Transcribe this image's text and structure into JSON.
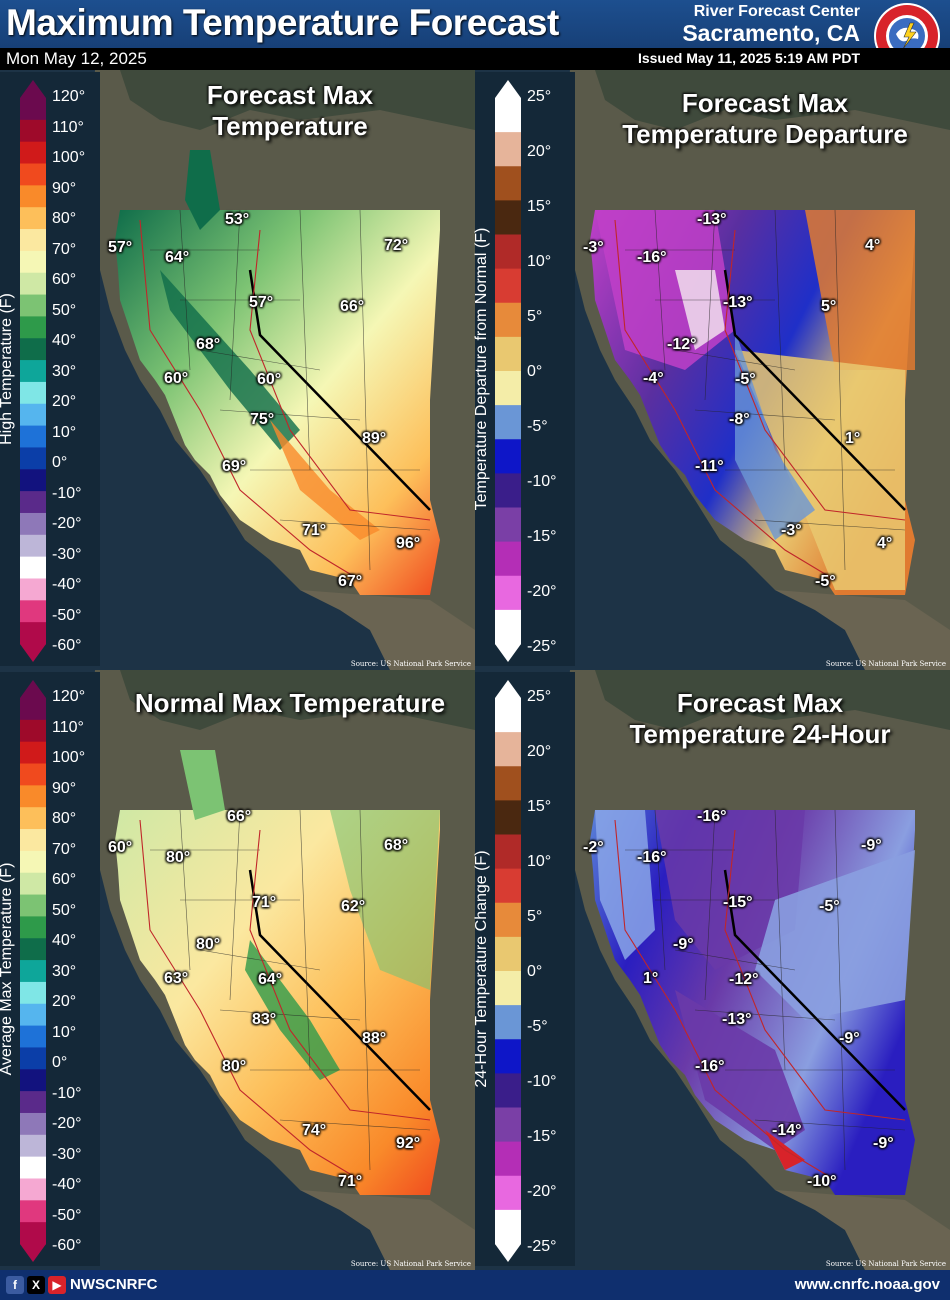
{
  "header": {
    "title": "Maximum Temperature Forecast",
    "date": "Mon May 12, 2025",
    "office": "River Forecast Center",
    "city": "Sacramento, CA",
    "issued": "Issued May 11, 2025 5:19 AM PDT",
    "logo_icon": "nws-logo-icon"
  },
  "panels": {
    "forecast": {
      "title_line1": "Forecast Max",
      "title_line2": "Temperature",
      "labels": [
        "53°",
        "57°",
        "64°",
        "72°",
        "57°",
        "66°",
        "68°",
        "60°",
        "60°",
        "75°",
        "89°",
        "69°",
        "71°",
        "96°",
        "67°"
      ],
      "source": "Source: US National Park Service"
    },
    "departure": {
      "title_line1": "Forecast Max",
      "title_line2": "Temperature Departure",
      "labels": [
        "-13°",
        "-3°",
        "-16°",
        "4°",
        "-13°",
        "5°",
        "-12°",
        "-4°",
        "-5°",
        "-8°",
        "1°",
        "-11°",
        "-3°",
        "4°",
        "-5°"
      ],
      "source": "Source: US National Park Service"
    },
    "normal": {
      "title_line1": "Normal Max Temperature",
      "labels": [
        "66°",
        "60°",
        "80°",
        "68°",
        "71°",
        "62°",
        "80°",
        "63°",
        "64°",
        "83°",
        "88°",
        "80°",
        "74°",
        "92°",
        "71°"
      ],
      "source": "Source: US National Park Service"
    },
    "change": {
      "title_line1": "Forecast Max",
      "title_line2": "Temperature 24-Hour",
      "labels": [
        "-16°",
        "-2°",
        "-16°",
        "-9°",
        "-15°",
        "-5°",
        "-9°",
        "1°",
        "-12°",
        "-13°",
        "-9°",
        "-16°",
        "-14°",
        "-9°",
        "-10°"
      ],
      "source": "Source: US National Park Service"
    }
  },
  "legends": {
    "high_temp": {
      "axis": "High Temperature (F)",
      "ticks": [
        "120°",
        "110°",
        "100°",
        "90°",
        "80°",
        "70°",
        "60°",
        "50°",
        "40°",
        "30°",
        "20°",
        "10°",
        "0°",
        "-10°",
        "-20°",
        "-30°",
        "-40°",
        "-50°",
        "-60°"
      ]
    },
    "departure": {
      "axis": "Temperature Departure from Normal (F)",
      "ticks": [
        "25°",
        "20°",
        "15°",
        "10°",
        "5°",
        "0°",
        "-5°",
        "-10°",
        "-15°",
        "-20°",
        "-25°"
      ]
    },
    "avg_temp": {
      "axis": "Average Max Temperature (F)",
      "ticks": [
        "120°",
        "110°",
        "100°",
        "90°",
        "80°",
        "70°",
        "60°",
        "50°",
        "40°",
        "30°",
        "20°",
        "10°",
        "0°",
        "-10°",
        "-20°",
        "-30°",
        "-40°",
        "-50°",
        "-60°"
      ]
    },
    "change": {
      "axis": "24-Hour Temperature Change (F)",
      "ticks": [
        "25°",
        "20°",
        "15°",
        "10°",
        "5°",
        "0°",
        "-5°",
        "-10°",
        "-15°",
        "-20°",
        "-25°"
      ]
    }
  },
  "colors": {
    "temp_scale": [
      "#6b0a4e",
      "#9e0a2a",
      "#d01a1a",
      "#f04a1e",
      "#f98a2a",
      "#fdbf5a",
      "#fbe8a0",
      "#f5f7b5",
      "#cfe8a5",
      "#7cc373",
      "#2e9a4a",
      "#0f6d4a",
      "#0ea69a",
      "#7fe6e6",
      "#55b5ee",
      "#1e72d8",
      "#0b3ea8",
      "#12127e",
      "#5a2a8a",
      "#8e78b8",
      "#bdb6d8",
      "#ffffff",
      "#f5a8d2",
      "#e0387e",
      "#b00a4a"
    ],
    "dep_scale": [
      "#ffffff",
      "#e6b49a",
      "#a0501e",
      "#4a2810",
      "#b02a28",
      "#d83c32",
      "#e78a3a",
      "#e9c870",
      "#f4eda8",
      "#6a96d6",
      "#0e16c8",
      "#3a1e8a",
      "#7a3fa6",
      "#b42eb6",
      "#e868e0",
      "#ffffff"
    ]
  },
  "footer": {
    "handle": "NWSCNRFC",
    "website": "www.cnrfc.noaa.gov",
    "social_icons": [
      "facebook-icon",
      "x-icon",
      "youtube-icon"
    ]
  }
}
